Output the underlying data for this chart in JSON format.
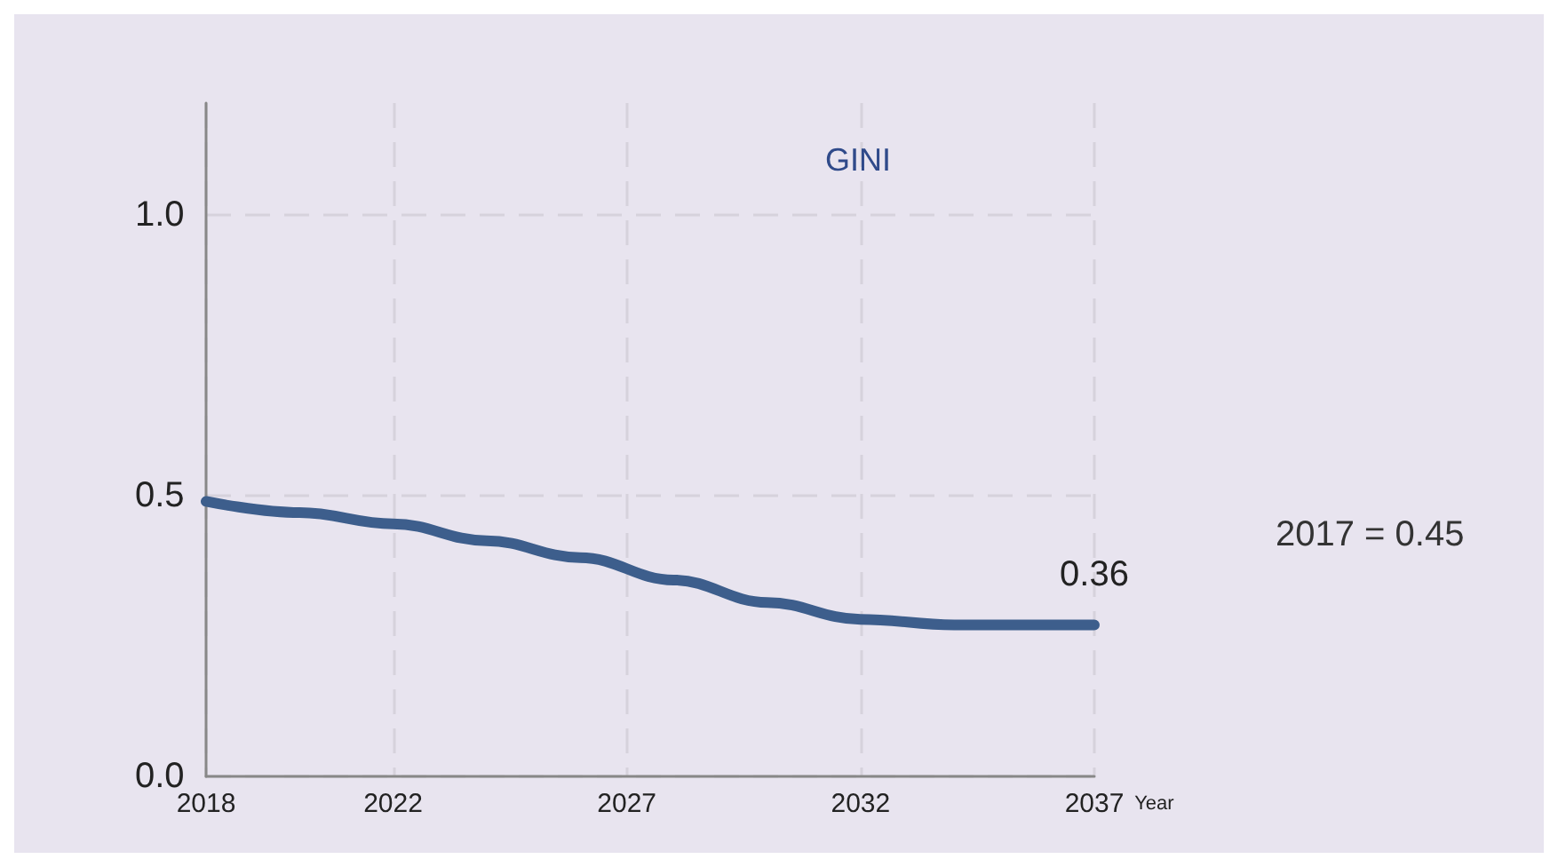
{
  "chart_data": {
    "type": "line",
    "title": "GINI",
    "xlabel": "Year",
    "x": [
      2018,
      2020,
      2022,
      2024,
      2026,
      2028,
      2030,
      2032,
      2034,
      2036,
      2037
    ],
    "series": [
      {
        "color": "#3d5e8c",
        "values": [
          0.49,
          0.47,
          0.45,
          0.42,
          0.39,
          0.35,
          0.31,
          0.28,
          0.27,
          0.27,
          0.27
        ]
      }
    ],
    "xlim": [
      2018,
      2037
    ],
    "xticks": [
      2018,
      2022,
      2027,
      2032,
      2037
    ],
    "ylim": [
      0,
      1.2
    ],
    "yticks": [
      {
        "value": 0,
        "label": "0.0"
      },
      {
        "value": 0.5,
        "label": "0.5"
      },
      {
        "value": 1,
        "label": "1.0"
      }
    ],
    "grid": true,
    "marker": "none",
    "line_style": "solid",
    "annotations": [
      {
        "text": "0.36",
        "x": 2037,
        "y": 0.27
      },
      "2017 = 0.45"
    ]
  }
}
